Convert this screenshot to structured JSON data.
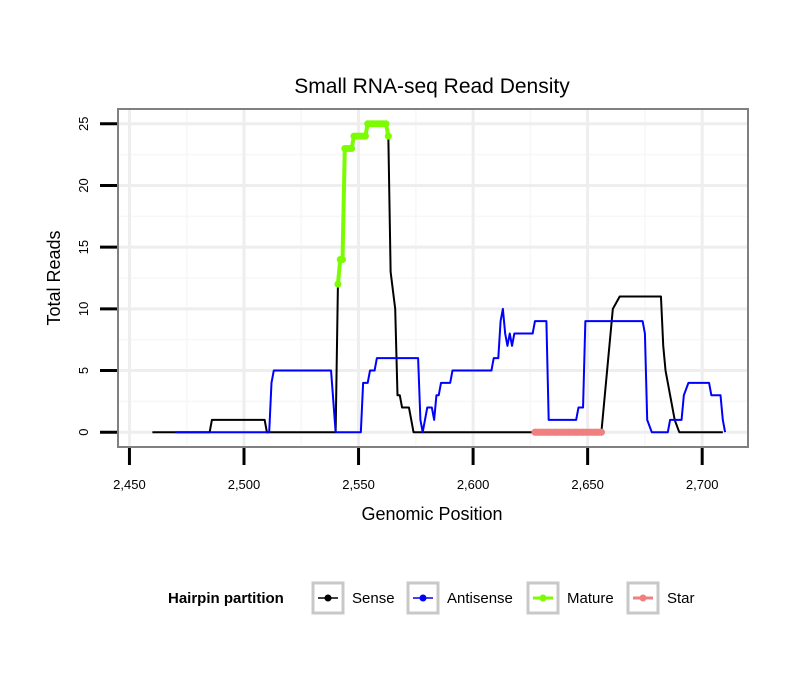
{
  "chart_data": {
    "type": "line",
    "title": "Small RNA-seq Read Density",
    "xlabel": "Genomic Position",
    "ylabel": "Total Reads",
    "xlim": [
      2445,
      2720
    ],
    "ylim": [
      -1.2,
      26.2
    ],
    "xticks": [
      2450,
      2500,
      2550,
      2600,
      2650,
      2700
    ],
    "xtick_labels": [
      "2,450",
      "2,500",
      "2,550",
      "2,600",
      "2,650",
      "2,700"
    ],
    "yticks": [
      0,
      5,
      10,
      15,
      20,
      25
    ],
    "ytick_labels": [
      "0",
      "5",
      "10",
      "15",
      "20",
      "25"
    ],
    "legend": {
      "title": "Hairpin partition",
      "placement": "bottom",
      "entries": [
        {
          "name": "Sense",
          "color": "#000000"
        },
        {
          "name": "Antisense",
          "color": "#0000ff"
        },
        {
          "name": "Mature",
          "color": "#7cfc00"
        },
        {
          "name": "Star",
          "color": "#f08080"
        }
      ]
    },
    "series": [
      {
        "name": "Sense",
        "color": "#000000",
        "points": [
          [
            2460,
            0
          ],
          [
            2485,
            0
          ],
          [
            2486,
            1
          ],
          [
            2509,
            1
          ],
          [
            2510,
            0
          ],
          [
            2540,
            0
          ],
          [
            2541,
            12
          ],
          [
            2542,
            14
          ],
          [
            2543,
            14
          ],
          [
            2544,
            23
          ],
          [
            2547,
            23
          ],
          [
            2548,
            24
          ],
          [
            2553,
            24
          ],
          [
            2554,
            25
          ],
          [
            2562,
            25
          ],
          [
            2563,
            24
          ],
          [
            2564,
            13
          ],
          [
            2566,
            10
          ],
          [
            2567,
            3
          ],
          [
            2568,
            3
          ],
          [
            2569,
            2
          ],
          [
            2572,
            2
          ],
          [
            2573,
            1
          ],
          [
            2574,
            0
          ],
          [
            2627,
            0
          ],
          [
            2656,
            0
          ],
          [
            2660,
            8
          ],
          [
            2661,
            10
          ],
          [
            2664,
            11
          ],
          [
            2682,
            11
          ],
          [
            2683,
            7
          ],
          [
            2684,
            5
          ],
          [
            2686,
            3
          ],
          [
            2688,
            1
          ],
          [
            2690,
            0
          ],
          [
            2709,
            0
          ]
        ]
      },
      {
        "name": "Antisense",
        "color": "#0000ff",
        "points": [
          [
            2470,
            0
          ],
          [
            2511,
            0
          ],
          [
            2512,
            4
          ],
          [
            2513,
            5
          ],
          [
            2538,
            5
          ],
          [
            2540,
            0
          ],
          [
            2551,
            0
          ],
          [
            2552,
            4
          ],
          [
            2554,
            4
          ],
          [
            2555,
            5
          ],
          [
            2557,
            5
          ],
          [
            2558,
            6
          ],
          [
            2576,
            6
          ],
          [
            2577,
            1
          ],
          [
            2578,
            0
          ],
          [
            2580,
            2
          ],
          [
            2582,
            2
          ],
          [
            2583,
            1
          ],
          [
            2584,
            3
          ],
          [
            2585,
            3
          ],
          [
            2586,
            4
          ],
          [
            2590,
            4
          ],
          [
            2591,
            5
          ],
          [
            2608,
            5
          ],
          [
            2609,
            6
          ],
          [
            2611,
            6
          ],
          [
            2612,
            9
          ],
          [
            2613,
            10
          ],
          [
            2614,
            8
          ],
          [
            2615,
            7
          ],
          [
            2616,
            8
          ],
          [
            2617,
            7
          ],
          [
            2618,
            8
          ],
          [
            2626,
            8
          ],
          [
            2627,
            9
          ],
          [
            2632,
            9
          ],
          [
            2633,
            1
          ],
          [
            2645,
            1
          ],
          [
            2646,
            2
          ],
          [
            2648,
            2
          ],
          [
            2649,
            9
          ],
          [
            2674,
            9
          ],
          [
            2675,
            8
          ],
          [
            2676,
            1
          ],
          [
            2678,
            0
          ],
          [
            2685,
            0
          ],
          [
            2686,
            1
          ],
          [
            2691,
            1
          ],
          [
            2692,
            3
          ],
          [
            2694,
            4
          ],
          [
            2703,
            4
          ],
          [
            2704,
            3
          ],
          [
            2708,
            3
          ],
          [
            2709,
            1
          ],
          [
            2710,
            0
          ]
        ]
      },
      {
        "name": "Mature",
        "color": "#7cfc00",
        "points": [
          [
            2541,
            12
          ],
          [
            2542,
            14
          ],
          [
            2543,
            14
          ],
          [
            2544,
            23
          ],
          [
            2545,
            23
          ],
          [
            2546,
            23
          ],
          [
            2547,
            23
          ],
          [
            2548,
            24
          ],
          [
            2549,
            24
          ],
          [
            2550,
            24
          ],
          [
            2551,
            24
          ],
          [
            2552,
            24
          ],
          [
            2553,
            24
          ],
          [
            2554,
            25
          ],
          [
            2555,
            25
          ],
          [
            2556,
            25
          ],
          [
            2557,
            25
          ],
          [
            2558,
            25
          ],
          [
            2559,
            25
          ],
          [
            2560,
            25
          ],
          [
            2561,
            25
          ],
          [
            2562,
            25
          ],
          [
            2563,
            24
          ]
        ]
      },
      {
        "name": "Star",
        "color": "#f08080",
        "points": [
          [
            2627,
            0
          ],
          [
            2630,
            0
          ],
          [
            2633,
            0
          ],
          [
            2636,
            0
          ],
          [
            2639,
            0
          ],
          [
            2642,
            0
          ],
          [
            2645,
            0
          ],
          [
            2648,
            0
          ],
          [
            2651,
            0
          ],
          [
            2654,
            0
          ],
          [
            2656,
            0
          ]
        ]
      }
    ]
  }
}
